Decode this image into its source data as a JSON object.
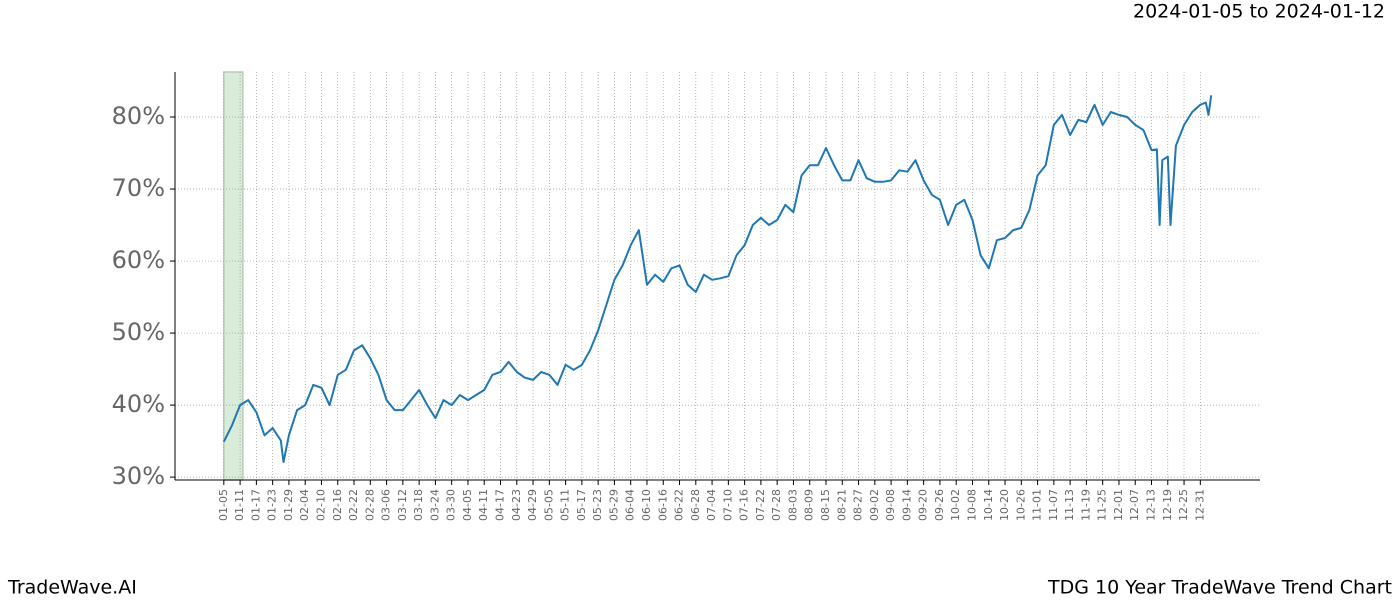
{
  "chart_data": {
    "type": "line",
    "title": "2024-01-05 to 2024-01-12",
    "brand": "TradeWave.AI",
    "caption": "TDG 10 Year TradeWave Trend Chart",
    "color": "#1f77b4",
    "grid": true,
    "highlight": {
      "x": [
        0,
        7
      ],
      "color": "#d9ebd9"
    },
    "xlim": [
      -18,
      382
    ],
    "ylim": [
      29.6,
      86.25
    ],
    "yticks": [
      {
        "value": 30,
        "label": "30%"
      },
      {
        "value": 40,
        "label": "40%"
      },
      {
        "value": 50,
        "label": "50%"
      },
      {
        "value": 60,
        "label": "60%"
      },
      {
        "value": 70,
        "label": "70%"
      },
      {
        "value": 80,
        "label": "80%"
      }
    ],
    "xticks": [
      {
        "value": 0,
        "label": "01-05"
      },
      {
        "value": 6,
        "label": "01-11"
      },
      {
        "value": 12,
        "label": "01-17"
      },
      {
        "value": 18,
        "label": "01-23"
      },
      {
        "value": 24,
        "label": "01-29"
      },
      {
        "value": 30,
        "label": "02-04"
      },
      {
        "value": 36,
        "label": "02-10"
      },
      {
        "value": 42,
        "label": "02-16"
      },
      {
        "value": 48,
        "label": "02-22"
      },
      {
        "value": 54,
        "label": "02-28"
      },
      {
        "value": 60,
        "label": "03-06"
      },
      {
        "value": 66,
        "label": "03-12"
      },
      {
        "value": 72,
        "label": "03-18"
      },
      {
        "value": 78,
        "label": "03-24"
      },
      {
        "value": 84,
        "label": "03-30"
      },
      {
        "value": 90,
        "label": "04-05"
      },
      {
        "value": 96,
        "label": "04-11"
      },
      {
        "value": 102,
        "label": "04-17"
      },
      {
        "value": 108,
        "label": "04-23"
      },
      {
        "value": 114,
        "label": "04-29"
      },
      {
        "value": 120,
        "label": "05-05"
      },
      {
        "value": 126,
        "label": "05-11"
      },
      {
        "value": 132,
        "label": "05-17"
      },
      {
        "value": 138,
        "label": "05-23"
      },
      {
        "value": 144,
        "label": "05-29"
      },
      {
        "value": 150,
        "label": "06-04"
      },
      {
        "value": 156,
        "label": "06-10"
      },
      {
        "value": 162,
        "label": "06-16"
      },
      {
        "value": 168,
        "label": "06-22"
      },
      {
        "value": 174,
        "label": "06-28"
      },
      {
        "value": 180,
        "label": "07-04"
      },
      {
        "value": 186,
        "label": "07-10"
      },
      {
        "value": 192,
        "label": "07-16"
      },
      {
        "value": 198,
        "label": "07-22"
      },
      {
        "value": 204,
        "label": "07-28"
      },
      {
        "value": 210,
        "label": "08-03"
      },
      {
        "value": 216,
        "label": "08-09"
      },
      {
        "value": 222,
        "label": "08-15"
      },
      {
        "value": 228,
        "label": "08-21"
      },
      {
        "value": 234,
        "label": "08-27"
      },
      {
        "value": 240,
        "label": "09-02"
      },
      {
        "value": 246,
        "label": "09-08"
      },
      {
        "value": 252,
        "label": "09-14"
      },
      {
        "value": 258,
        "label": "09-20"
      },
      {
        "value": 264,
        "label": "09-26"
      },
      {
        "value": 270,
        "label": "10-02"
      },
      {
        "value": 276,
        "label": "10-08"
      },
      {
        "value": 282,
        "label": "10-14"
      },
      {
        "value": 288,
        "label": "10-20"
      },
      {
        "value": 294,
        "label": "10-26"
      },
      {
        "value": 300,
        "label": "11-01"
      },
      {
        "value": 306,
        "label": "11-07"
      },
      {
        "value": 312,
        "label": "11-13"
      },
      {
        "value": 318,
        "label": "11-19"
      },
      {
        "value": 324,
        "label": "11-25"
      },
      {
        "value": 330,
        "label": "12-01"
      },
      {
        "value": 336,
        "label": "12-07"
      },
      {
        "value": 342,
        "label": "12-13"
      },
      {
        "value": 348,
        "label": "12-19"
      },
      {
        "value": 354,
        "label": "12-25"
      },
      {
        "value": 360,
        "label": "12-31"
      }
    ],
    "x": [
      0,
      3,
      6,
      9,
      12,
      15,
      18,
      21,
      22,
      24,
      27,
      30,
      33,
      36,
      39,
      42,
      45,
      48,
      51,
      54,
      57,
      60,
      63,
      66,
      69,
      72,
      75,
      78,
      81,
      84,
      87,
      90,
      93,
      96,
      99,
      102,
      105,
      108,
      111,
      114,
      117,
      120,
      123,
      126,
      129,
      132,
      135,
      138,
      141,
      144,
      147,
      150,
      153,
      156,
      159,
      162,
      165,
      168,
      171,
      174,
      177,
      180,
      183,
      186,
      189,
      192,
      195,
      198,
      201,
      204,
      207,
      210,
      213,
      216,
      219,
      222,
      225,
      228,
      231,
      234,
      237,
      240,
      243,
      246,
      249,
      252,
      255,
      258,
      261,
      264,
      267,
      270,
      273,
      276,
      279,
      282,
      285,
      288,
      291,
      294,
      297,
      300,
      303,
      306,
      309,
      312,
      315,
      318,
      321,
      324,
      327,
      330,
      333,
      336,
      339,
      342,
      344,
      345,
      346,
      348,
      349,
      351,
      354,
      357,
      360,
      362,
      363,
      364
    ],
    "values": [
      34.9,
      37.2,
      40.0,
      40.7,
      39.0,
      35.8,
      36.8,
      35.1,
      32.1,
      35.8,
      39.3,
      40.0,
      42.8,
      42.4,
      40.0,
      44.2,
      44.9,
      47.6,
      48.3,
      46.5,
      44.2,
      40.7,
      39.3,
      39.3,
      40.7,
      42.1,
      40.0,
      38.2,
      40.7,
      40.0,
      41.4,
      40.7,
      41.4,
      42.1,
      44.2,
      44.6,
      46.0,
      44.6,
      43.8,
      43.5,
      44.6,
      44.2,
      42.8,
      45.6,
      44.9,
      45.6,
      47.6,
      50.4,
      53.9,
      57.4,
      59.4,
      62.2,
      64.3,
      56.7,
      58.1,
      57.1,
      59.0,
      59.4,
      56.7,
      55.7,
      58.1,
      57.4,
      57.6,
      57.9,
      60.8,
      62.2,
      65.0,
      66.0,
      65.0,
      65.7,
      67.8,
      66.8,
      71.9,
      73.3,
      73.3,
      75.7,
      73.3,
      71.2,
      71.2,
      74.0,
      71.5,
      71.0,
      71.0,
      71.2,
      72.6,
      72.4,
      74.0,
      71.2,
      69.2,
      68.5,
      65.0,
      67.8,
      68.5,
      65.7,
      60.8,
      59.0,
      62.9,
      63.2,
      64.3,
      64.6,
      67.1,
      71.9,
      73.3,
      78.9,
      80.3,
      77.5,
      79.6,
      79.3,
      81.7,
      78.9,
      80.7,
      80.3,
      80.0,
      78.9,
      78.2,
      75.4,
      75.5,
      65.0,
      74.0,
      74.5,
      65.0,
      76.0,
      78.9,
      80.7,
      81.7,
      82.0,
      80.3,
      83.0
    ]
  }
}
